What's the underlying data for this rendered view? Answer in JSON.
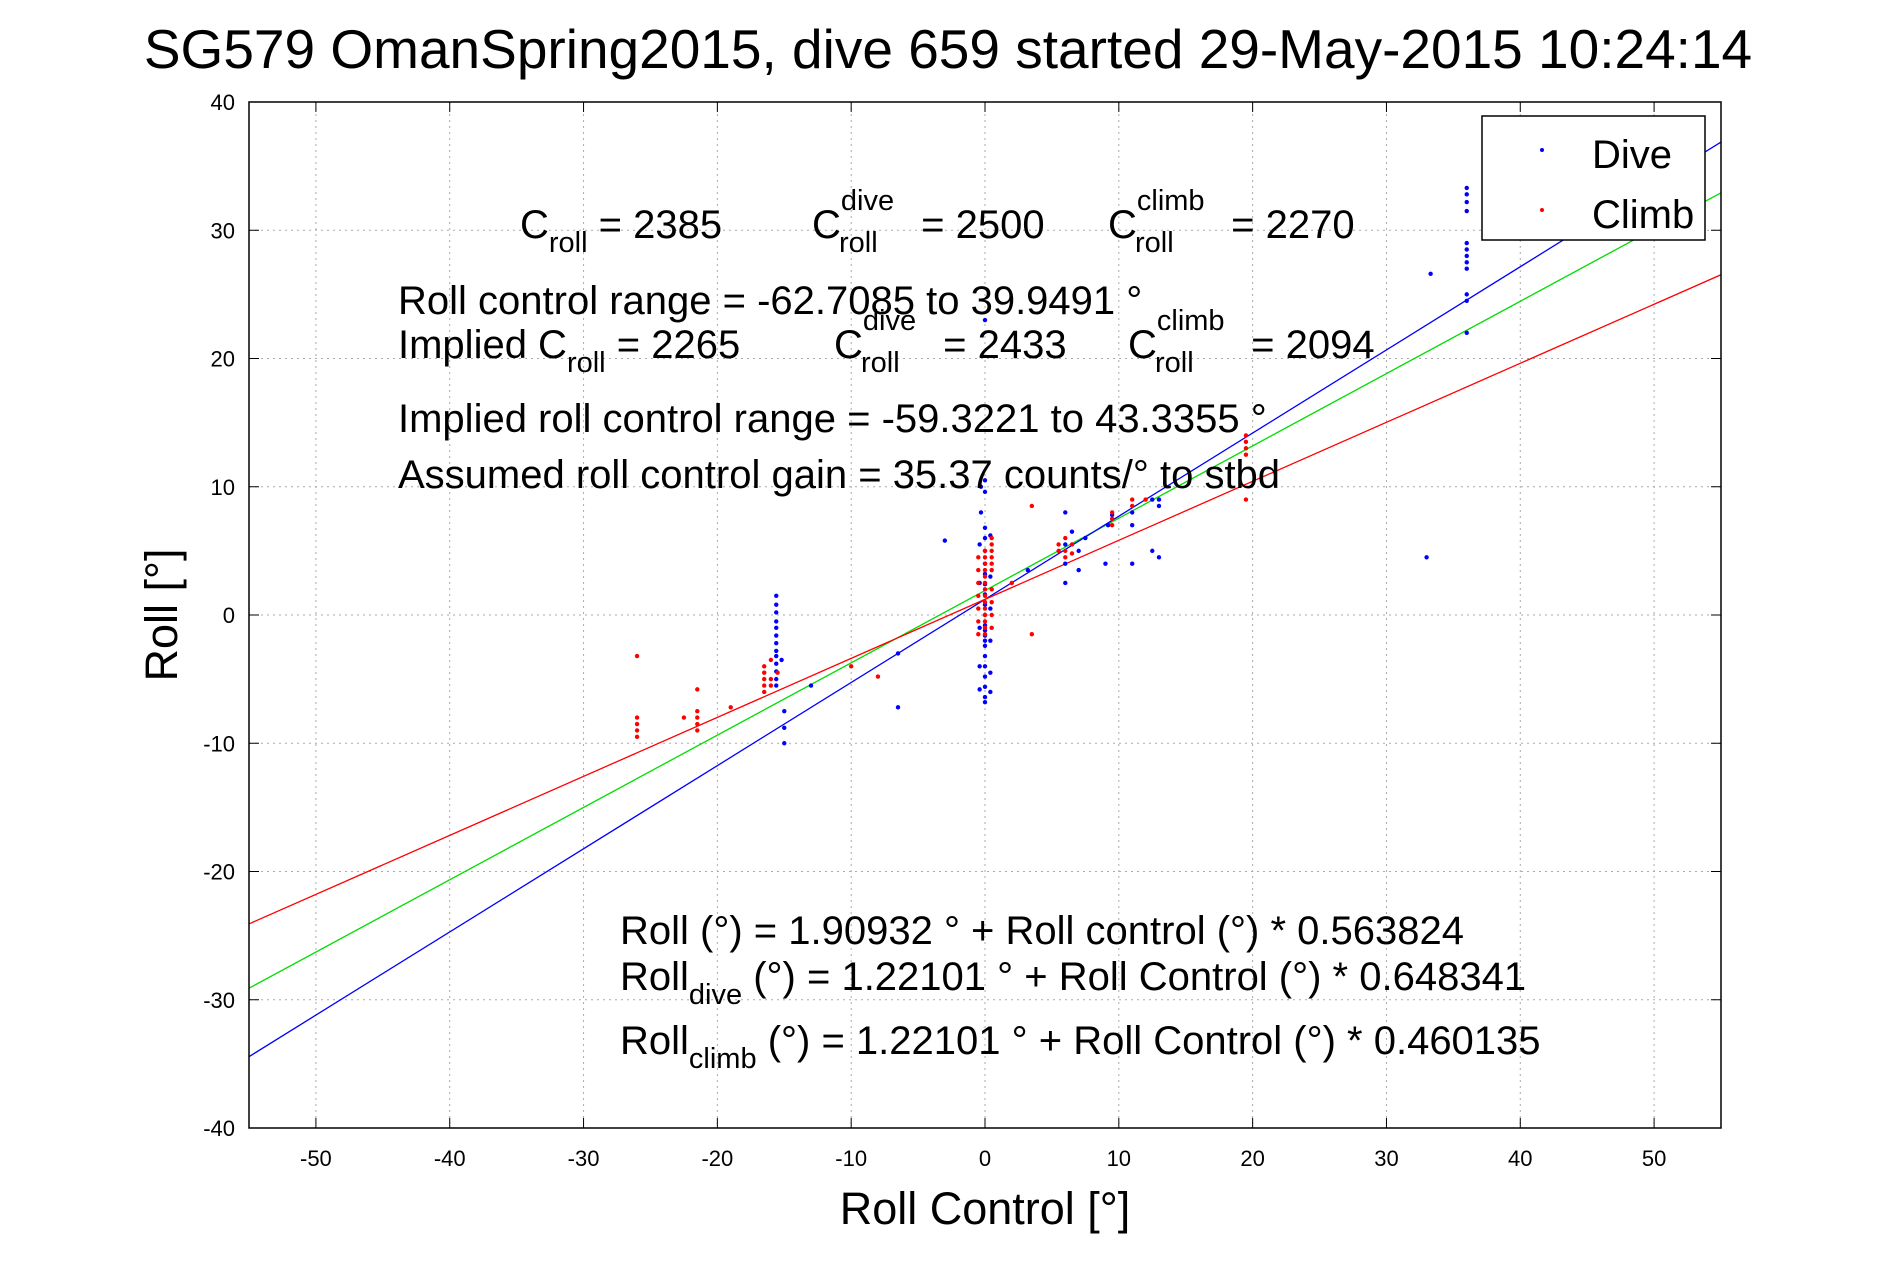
{
  "chart_data": {
    "type": "scatter",
    "title": "SG579 OmanSpring2015, dive 659 started 29-May-2015 10:24:14",
    "xlabel": "Roll Control [°]",
    "ylabel": "Roll [°]",
    "xlim": [
      -55,
      55
    ],
    "ylim": [
      -40,
      40
    ],
    "xticks": [
      -50,
      -40,
      -30,
      -20,
      -10,
      0,
      10,
      20,
      30,
      40,
      50
    ],
    "yticks": [
      -40,
      -30,
      -20,
      -10,
      0,
      10,
      20,
      30,
      40
    ],
    "grid": true,
    "legend_position": "top-right",
    "colors": {
      "dive": "#0000ff",
      "climb": "#ff0000",
      "combined_fit": "#00dd00",
      "axes": "#000000",
      "grid": "#aaaaaa"
    },
    "legend": [
      {
        "label": "Dive",
        "color": "#0000ff"
      },
      {
        "label": "Climb",
        "color": "#ff0000"
      }
    ],
    "series": [
      {
        "name": "Dive",
        "color": "#0000ff",
        "points": [
          [
            -15.6,
            1.5
          ],
          [
            -15.6,
            0.8
          ],
          [
            -15.6,
            0.2
          ],
          [
            -15.6,
            -0.5
          ],
          [
            -15.6,
            -1.0
          ],
          [
            -15.6,
            -1.6
          ],
          [
            -15.6,
            -2.2
          ],
          [
            -15.6,
            -2.8
          ],
          [
            -15.6,
            -3.2
          ],
          [
            -15.6,
            -3.8
          ],
          [
            -15.6,
            -4.4
          ],
          [
            -15.6,
            -5.0
          ],
          [
            -15.6,
            -5.5
          ],
          [
            -15.2,
            -3.5
          ],
          [
            -15.0,
            -7.5
          ],
          [
            -15.0,
            -8.8
          ],
          [
            -15.0,
            -10.0
          ],
          [
            -13.0,
            -5.5
          ],
          [
            -6.5,
            -3.0
          ],
          [
            -6.5,
            -7.2
          ],
          [
            -3.0,
            5.8
          ],
          [
            -0.3,
            10.0
          ],
          [
            -0.3,
            8.0
          ],
          [
            0.0,
            23.0
          ],
          [
            0.0,
            6.8
          ],
          [
            0.0,
            6.0
          ],
          [
            0.0,
            5.0
          ],
          [
            0.0,
            4.0
          ],
          [
            0.0,
            3.2
          ],
          [
            0.0,
            2.4
          ],
          [
            0.0,
            1.6
          ],
          [
            0.0,
            0.8
          ],
          [
            0.0,
            0.0
          ],
          [
            0.0,
            -0.8
          ],
          [
            0.0,
            -1.6
          ],
          [
            0.0,
            -2.4
          ],
          [
            0.0,
            -3.2
          ],
          [
            0.0,
            -4.0
          ],
          [
            0.0,
            -4.8
          ],
          [
            0.0,
            -5.6
          ],
          [
            0.0,
            -6.4
          ],
          [
            0.0,
            -6.8
          ],
          [
            -0.4,
            5.5
          ],
          [
            -0.4,
            2.5
          ],
          [
            -0.4,
            -1.0
          ],
          [
            -0.4,
            -4.0
          ],
          [
            -0.4,
            -5.8
          ],
          [
            0.4,
            6.2
          ],
          [
            0.4,
            3.0
          ],
          [
            0.4,
            0.5
          ],
          [
            0.4,
            -2.0
          ],
          [
            0.4,
            -4.5
          ],
          [
            0.4,
            -6.0
          ],
          [
            0.0,
            10.5
          ],
          [
            0.0,
            9.6
          ],
          [
            0.0,
            -1.2
          ],
          [
            0.0,
            -2.0
          ],
          [
            3.2,
            3.5
          ],
          [
            6.0,
            8.0
          ],
          [
            6.0,
            5.5
          ],
          [
            6.0,
            4.0
          ],
          [
            6.0,
            2.5
          ],
          [
            6.5,
            6.5
          ],
          [
            7.0,
            5.0
          ],
          [
            7.5,
            6.0
          ],
          [
            7.0,
            3.5
          ],
          [
            9.0,
            4.0
          ],
          [
            9.2,
            7.0
          ],
          [
            9.5,
            7.8
          ],
          [
            11.0,
            8.0
          ],
          [
            11.0,
            7.0
          ],
          [
            11.0,
            4.0
          ],
          [
            12.5,
            9.0
          ],
          [
            12.5,
            5.0
          ],
          [
            13.0,
            9.0
          ],
          [
            13.0,
            8.5
          ],
          [
            13.0,
            4.5
          ],
          [
            33.0,
            4.5
          ],
          [
            33.3,
            26.6
          ],
          [
            36.0,
            33.3
          ],
          [
            36.0,
            32.8
          ],
          [
            36.0,
            32.2
          ],
          [
            36.0,
            31.5
          ],
          [
            36.0,
            29.0
          ],
          [
            36.0,
            28.5
          ],
          [
            36.0,
            28.0
          ],
          [
            36.0,
            27.5
          ],
          [
            36.0,
            27.0
          ],
          [
            36.0,
            25.0
          ],
          [
            36.0,
            24.5
          ],
          [
            36.0,
            22.0
          ]
        ]
      },
      {
        "name": "Climb",
        "color": "#ff0000",
        "points": [
          [
            -26.0,
            -3.2
          ],
          [
            -26.0,
            -8.0
          ],
          [
            -26.0,
            -8.5
          ],
          [
            -26.0,
            -9.0
          ],
          [
            -26.0,
            -9.5
          ],
          [
            -22.5,
            -8.0
          ],
          [
            -21.5,
            -5.8
          ],
          [
            -21.5,
            -7.5
          ],
          [
            -21.5,
            -8.0
          ],
          [
            -21.5,
            -8.5
          ],
          [
            -21.5,
            -9.0
          ],
          [
            -19.0,
            -7.2
          ],
          [
            -16.5,
            -4.0
          ],
          [
            -16.5,
            -4.5
          ],
          [
            -16.5,
            -5.0
          ],
          [
            -16.5,
            -5.5
          ],
          [
            -16.5,
            -6.0
          ],
          [
            -16.0,
            -3.5
          ],
          [
            -16.0,
            -5.0
          ],
          [
            -16.0,
            -5.5
          ],
          [
            -15.5,
            -4.5
          ],
          [
            -10.0,
            -4.0
          ],
          [
            -8.0,
            -4.8
          ],
          [
            -0.5,
            4.5
          ],
          [
            -0.5,
            3.5
          ],
          [
            -0.5,
            2.5
          ],
          [
            -0.5,
            1.5
          ],
          [
            -0.5,
            0.5
          ],
          [
            -0.5,
            -0.5
          ],
          [
            -0.5,
            -1.5
          ],
          [
            0.0,
            5.0
          ],
          [
            0.0,
            4.5
          ],
          [
            0.0,
            4.0
          ],
          [
            0.0,
            3.5
          ],
          [
            0.0,
            3.0
          ],
          [
            0.0,
            2.5
          ],
          [
            0.0,
            2.0
          ],
          [
            0.0,
            1.5
          ],
          [
            0.0,
            1.0
          ],
          [
            0.0,
            0.5
          ],
          [
            0.0,
            0.0
          ],
          [
            0.0,
            -0.5
          ],
          [
            0.0,
            -1.0
          ],
          [
            0.0,
            -1.5
          ],
          [
            0.5,
            6.0
          ],
          [
            0.5,
            5.5
          ],
          [
            0.5,
            5.0
          ],
          [
            0.5,
            4.5
          ],
          [
            0.5,
            4.0
          ],
          [
            0.5,
            3.5
          ],
          [
            0.5,
            2.0
          ],
          [
            0.5,
            1.0
          ],
          [
            0.5,
            0.0
          ],
          [
            0.5,
            -1.0
          ],
          [
            2.0,
            2.5
          ],
          [
            3.5,
            8.5
          ],
          [
            3.5,
            -1.5
          ],
          [
            5.5,
            5.5
          ],
          [
            5.5,
            5.0
          ],
          [
            6.0,
            6.0
          ],
          [
            6.0,
            5.0
          ],
          [
            6.0,
            4.5
          ],
          [
            6.5,
            5.5
          ],
          [
            6.5,
            4.8
          ],
          [
            9.5,
            8.0
          ],
          [
            9.5,
            7.5
          ],
          [
            9.5,
            7.0
          ],
          [
            11.0,
            9.0
          ],
          [
            11.0,
            8.5
          ],
          [
            12.0,
            9.0
          ],
          [
            19.5,
            14.0
          ],
          [
            19.5,
            13.5
          ],
          [
            19.5,
            13.0
          ],
          [
            19.5,
            12.5
          ],
          [
            19.5,
            9.0
          ]
        ]
      }
    ],
    "fit_lines": [
      {
        "label": "combined",
        "color": "#00dd00",
        "intercept": 1.90932,
        "slope": 0.563824
      },
      {
        "label": "dive",
        "color": "#0000ff",
        "intercept": 1.22101,
        "slope": 0.648341
      },
      {
        "label": "climb",
        "color": "#ff0000",
        "intercept": 1.22101,
        "slope": 0.460135
      }
    ],
    "annotations": {
      "c_roll": {
        "base": "C",
        "sub": "roll",
        "rest": " = 2385"
      },
      "c_roll_dive": {
        "base": "C",
        "sup": "dive",
        "sub": "roll",
        "rest": " = 2500"
      },
      "c_roll_climb": {
        "base": "C",
        "sup": "climb",
        "sub": "roll",
        "rest": " = 2270"
      },
      "roll_control_range": "Roll control range = -62.7085 to 39.9491 °",
      "implied_c_roll": {
        "prefix": "Implied C",
        "sub": "roll",
        "rest": " = 2265"
      },
      "implied_c_roll_dive": {
        "base": "C",
        "sup": "dive",
        "sub": "roll",
        "rest": " = 2433"
      },
      "implied_c_roll_climb": {
        "base": "C",
        "sup": "climb",
        "sub": "roll",
        "rest": " = 2094"
      },
      "implied_range": "Implied roll control range = -59.3221 to 43.3355 °",
      "assumed_gain": "Assumed roll control gain = 35.37 counts/° to stbd",
      "eq_roll": "Roll (°) = 1.90932 ° + Roll control (°) * 0.563824",
      "eq_dive": {
        "base": "Roll",
        "sub": "dive",
        "rest": " (°) = 1.22101 ° + Roll Control (°) * 0.648341"
      },
      "eq_climb": {
        "base": "Roll",
        "sub": "climb",
        "rest": " (°) = 1.22101 ° + Roll Control (°) * 0.460135"
      }
    }
  }
}
